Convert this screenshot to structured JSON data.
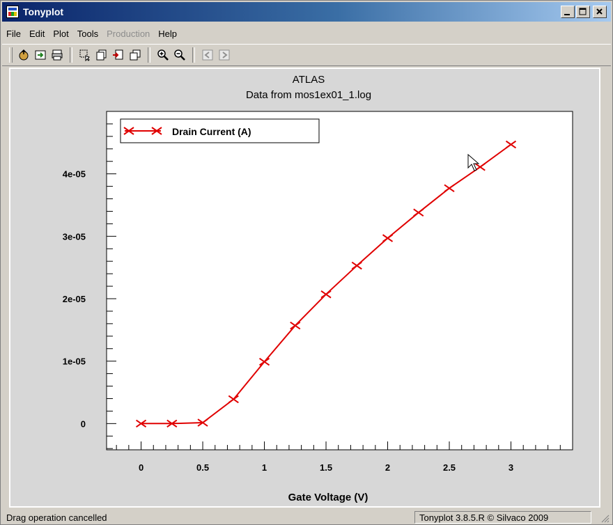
{
  "window": {
    "title": "Tonyplot",
    "app_icon": "tonyplot-app-icon",
    "controls": [
      "minimize-icon",
      "maximize-icon",
      "close-icon"
    ]
  },
  "menu": [
    {
      "label": "File",
      "enabled": true
    },
    {
      "label": "Edit",
      "enabled": true
    },
    {
      "label": "Plot",
      "enabled": true
    },
    {
      "label": "Tools",
      "enabled": true
    },
    {
      "label": "Production",
      "enabled": false
    },
    {
      "label": "Help",
      "enabled": true
    }
  ],
  "toolbar": {
    "tools": [
      "open-icon",
      "save-icon",
      "print-icon",
      "select-icon",
      "copy-icon",
      "import-icon",
      "overlay-icon",
      "zoom-in-icon",
      "zoom-out-icon",
      "back-icon",
      "forward-icon"
    ]
  },
  "chart_data": {
    "type": "line",
    "title": "ATLAS",
    "subtitle": "Data from mos1ex01_1.log",
    "xlabel": "Gate Voltage (V)",
    "ylabel": "",
    "xlim": [
      -0.28,
      3.5
    ],
    "ylim": [
      -4.2e-06,
      5e-05
    ],
    "x_ticks": [
      0,
      0.5,
      1,
      1.5,
      2,
      2.5,
      3
    ],
    "x_tick_labels": [
      "0",
      "0.5",
      "1",
      "1.5",
      "2",
      "2.5",
      "3"
    ],
    "y_ticks": [
      0,
      1e-05,
      2e-05,
      3e-05,
      4e-05
    ],
    "y_tick_labels": [
      "0",
      "1e-05",
      "2e-05",
      "3e-05",
      "4e-05"
    ],
    "grid": false,
    "legend": "top-left",
    "series": [
      {
        "name": "Drain Current (A)",
        "color": "#e00000",
        "marker": "x",
        "x": [
          0,
          0.25,
          0.5,
          0.75,
          1.0,
          1.25,
          1.5,
          1.75,
          2.0,
          2.25,
          2.5,
          2.75,
          3.0
        ],
        "y": [
          0,
          0,
          1.5e-07,
          3.9e-06,
          9.9e-06,
          1.57e-05,
          2.07e-05,
          2.53e-05,
          2.97e-05,
          3.38e-05,
          3.77e-05,
          4.11e-05,
          4.47e-05
        ]
      }
    ]
  },
  "status": {
    "message": "Drag operation cancelled",
    "version": "Tonyplot 3.8.5.R © Silvaco 2009"
  }
}
